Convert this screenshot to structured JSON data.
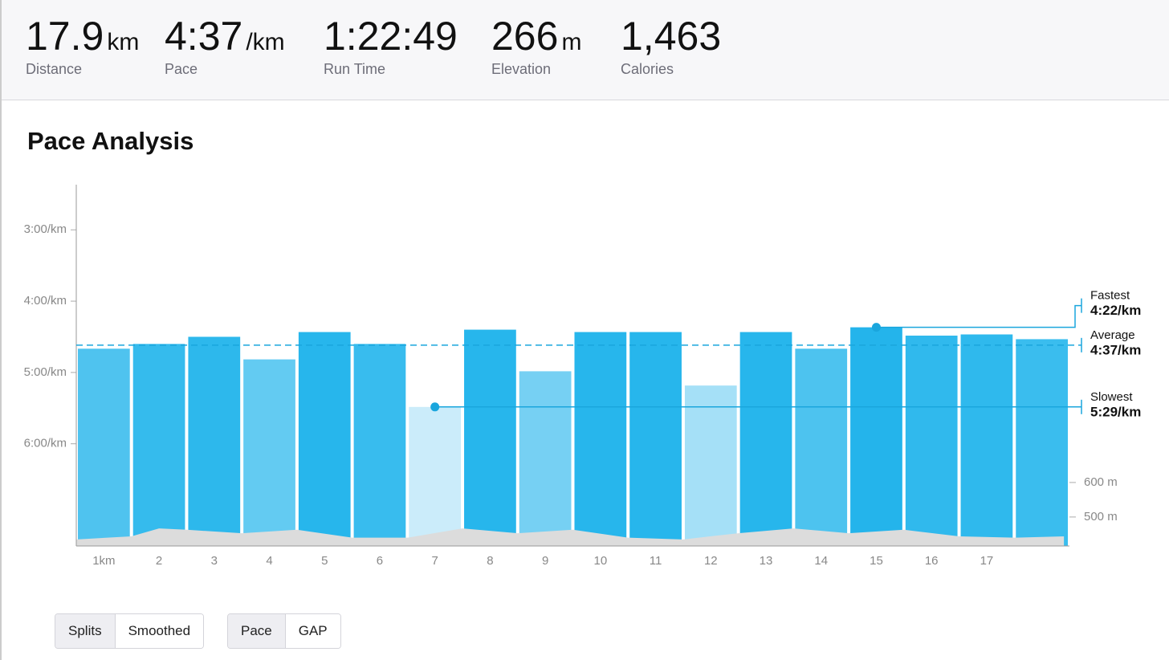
{
  "stats": [
    {
      "value": "17.9",
      "unit": "km",
      "label": "Distance"
    },
    {
      "value": "4:37",
      "unit": "/km",
      "label": "Pace"
    },
    {
      "value": "1:22:49",
      "label": "Run Time"
    },
    {
      "value": "266",
      "unit": "m",
      "label": "Elevation"
    },
    {
      "value": "1,463",
      "label": "Calories"
    }
  ],
  "section_title": "Pace Analysis",
  "chart_data": {
    "type": "bar",
    "categories": [
      "1km",
      "2",
      "3",
      "4",
      "5",
      "6",
      "7",
      "8",
      "9",
      "10",
      "11",
      "12",
      "13",
      "14",
      "15",
      "16",
      "17",
      null
    ],
    "values": [
      280,
      276,
      270,
      289,
      266,
      276,
      329,
      264,
      299,
      266,
      266,
      311,
      266,
      280,
      262,
      269,
      268,
      272
    ],
    "colors": [
      "#4fc3ef",
      "#35bbed",
      "#2db8ec",
      "#63cbf2",
      "#27b6ec",
      "#38bcee",
      "#cbecfa",
      "#27b6ec",
      "#76d0f3",
      "#27b6ec",
      "#27b6ec",
      "#a5e0f7",
      "#27b6ec",
      "#4dc3ef",
      "#24b4eb",
      "#30b9ed",
      "#2fb9ed",
      "#3abdee"
    ],
    "ylim": [
      446,
      142
    ],
    "yticks": [
      {
        "value": 180,
        "label": "3:00/km"
      },
      {
        "value": 240,
        "label": "4:00/km"
      },
      {
        "value": 300,
        "label": "5:00/km"
      },
      {
        "value": 360,
        "label": "6:00/km"
      }
    ],
    "y2lim": [
      416,
      1463
    ],
    "y2ticks": [
      {
        "value": 500,
        "label": "500 m"
      },
      {
        "value": 600,
        "label": "600 m"
      }
    ],
    "elevation": {
      "axis": "y2",
      "color": "#dcdcdc",
      "x": [
        0,
        1,
        1.5,
        2,
        3,
        4,
        5,
        6,
        7,
        8,
        9,
        10,
        11,
        12,
        13,
        14,
        15,
        16,
        17,
        17.9
      ],
      "values": [
        435,
        444,
        467,
        463,
        453,
        463,
        440,
        440,
        467,
        453,
        463,
        440,
        435,
        453,
        467,
        453,
        463,
        444,
        440,
        444
      ]
    },
    "annotations": [
      {
        "label": "Fastest",
        "value": 262,
        "value_label": "4:22/km"
      },
      {
        "label": "Average",
        "value": 277,
        "value_label": "4:37/km"
      },
      {
        "label": "Slowest",
        "value": 329,
        "value_label": "5:29/km"
      }
    ]
  },
  "controls": [
    [
      "Splits",
      "Smoothed"
    ],
    [
      "Pace",
      "GAP"
    ]
  ]
}
